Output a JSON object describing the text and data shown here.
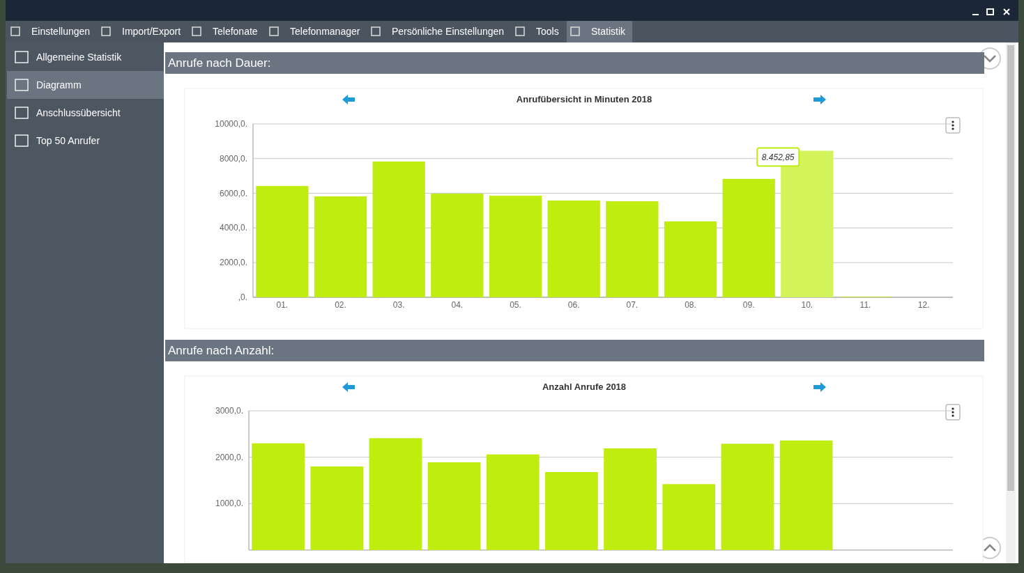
{
  "chart_data": [
    {
      "type": "bar",
      "title": "Anrufübersicht in Minuten 2018",
      "annotations": [
        "Anrufe nach Dauer:",
        {
          "text": "8.452,85",
          "x": "10.",
          "y": 8452.85
        }
      ],
      "categories": [
        "01.",
        "02.",
        "03.",
        "04.",
        "05.",
        "06.",
        "07.",
        "08.",
        "09.",
        "10.",
        "11.",
        "12."
      ],
      "values": [
        6420,
        5820,
        7830,
        5980,
        5860,
        5580,
        5540,
        4380,
        6830,
        8452.85,
        30,
        0
      ],
      "colors": [
        "#c0ed10",
        "#c0ed10",
        "#c0ed10",
        "#c0ed10",
        "#c0ed10",
        "#c0ed10",
        "#c0ed10",
        "#c0ed10",
        "#c0ed10",
        "#d3f35a",
        "#c0ed10",
        "#c0ed10"
      ],
      "ylim": [
        0,
        10000
      ],
      "yticks": [
        {
          "value": 0,
          "label": ",0."
        },
        {
          "value": 2000,
          "label": "2000,0."
        },
        {
          "value": 4000,
          "label": "4000,0."
        },
        {
          "value": 6000,
          "label": "6000,0."
        },
        {
          "value": 8000,
          "label": "8000,0."
        },
        {
          "value": 10000,
          "label": "10000,0."
        }
      ],
      "grid": "y"
    },
    {
      "type": "bar",
      "title": "Anzahl Anrufe 2018",
      "annotations": [
        "Anrufe nach Anzahl:"
      ],
      "categories": [
        null,
        null,
        null,
        null,
        null,
        null,
        null,
        null,
        null,
        null,
        null,
        null
      ],
      "values": [
        2300,
        1800,
        2410,
        1890,
        2060,
        1680,
        2190,
        1420,
        2290,
        2360,
        null,
        null
      ],
      "color": "#c0ed10",
      "ylim": [
        0,
        3000
      ],
      "yticks": [
        {
          "value": 1000,
          "label": "1000,0."
        },
        {
          "value": 2000,
          "label": "2000,0."
        },
        {
          "value": 3000,
          "label": "3000,0."
        }
      ],
      "grid": "y"
    },
    {
      "type": "other",
      "annotations": [
        "Einstellungen",
        "Import/Export",
        "Telefonate",
        "Telefonmanager",
        "Persönliche Einstellungen",
        "Tools",
        "Statistik",
        "Allgemeine Statistik",
        "Diagramm",
        "Anschlussübersicht",
        "Top 50 Anrufer"
      ]
    }
  ]
}
